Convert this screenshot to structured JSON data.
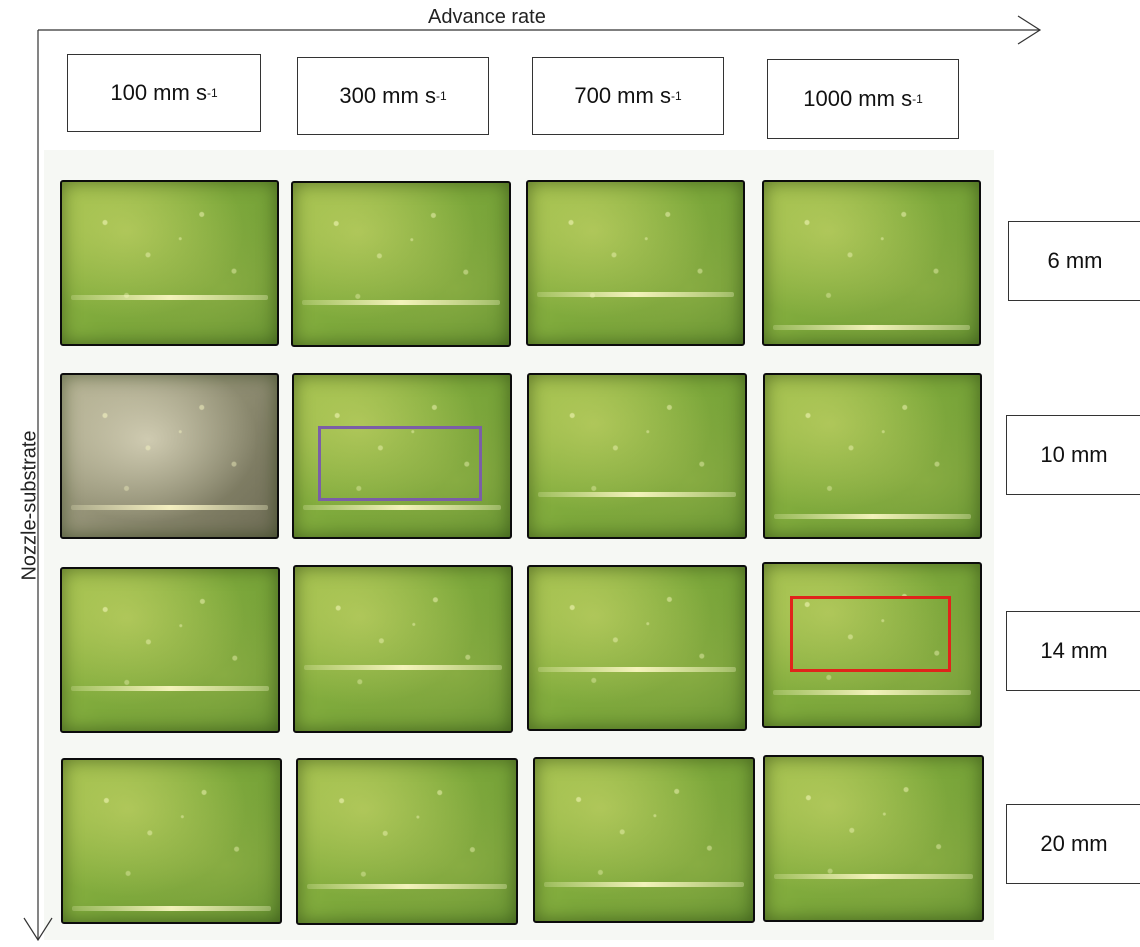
{
  "axes": {
    "x_label": "Advance rate",
    "y_label": "Nozzle-substrate"
  },
  "columns": [
    {
      "value": "100 mm s",
      "sup": "-1"
    },
    {
      "value": "300 mm s",
      "sup": "-1"
    },
    {
      "value": "700 mm s",
      "sup": "-1"
    },
    {
      "value": "1000 mm s",
      "sup": "-1"
    }
  ],
  "rows": [
    "6 mm",
    "10 mm",
    "14 mm",
    "20 mm"
  ],
  "highlights": [
    {
      "row": 1,
      "col": 1,
      "color": "#7b5ea7"
    },
    {
      "row": 2,
      "col": 3,
      "color": "#e0241b"
    }
  ]
}
